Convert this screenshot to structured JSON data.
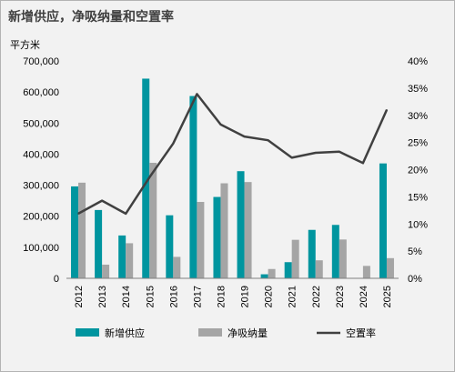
{
  "chart_data": {
    "type": "bar",
    "title": "新增供应，净吸纳量和空置率",
    "ylabel_left": "平方米",
    "categories": [
      "2012",
      "2013",
      "2014",
      "2015",
      "2016",
      "2017",
      "2018",
      "2019",
      "2020",
      "2021",
      "2022",
      "2023",
      "2024",
      "2025"
    ],
    "series": [
      {
        "name": "新增供应",
        "type": "bar",
        "axis": "left",
        "color": "#00959f",
        "values": [
          296000,
          220000,
          138000,
          643000,
          203000,
          587000,
          262000,
          345000,
          13000,
          52000,
          156000,
          172000,
          0,
          370000
        ]
      },
      {
        "name": "净吸纳量",
        "type": "bar",
        "axis": "left",
        "color": "#a5a5a5",
        "values": [
          308000,
          44000,
          113000,
          372000,
          69000,
          246000,
          306000,
          310000,
          30000,
          124000,
          58000,
          125000,
          40000,
          65000
        ]
      },
      {
        "name": "空置率",
        "type": "line",
        "axis": "right",
        "color": "#404040",
        "values": [
          0.119,
          0.143,
          0.119,
          0.186,
          0.248,
          0.339,
          0.283,
          0.261,
          0.254,
          0.222,
          0.231,
          0.233,
          0.212,
          0.31
        ]
      }
    ],
    "ylim_left": [
      0,
      700000
    ],
    "yticks_left": [
      "0",
      "100,000",
      "200,000",
      "300,000",
      "400,000",
      "500,000",
      "600,000",
      "700,000"
    ],
    "ylim_right": [
      0,
      0.4
    ],
    "yticks_right": [
      "0%",
      "5%",
      "10%",
      "15%",
      "20%",
      "25%",
      "30%",
      "35%",
      "40%"
    ],
    "grid": false,
    "legend_position": "bottom"
  }
}
